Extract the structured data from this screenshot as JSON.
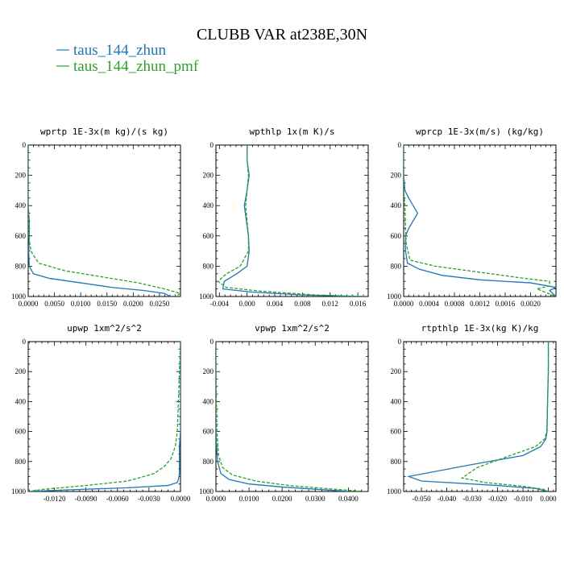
{
  "title": "CLUBB VAR at238E,30N",
  "colors": {
    "series1": "#1f77b4",
    "series2": "#2ca02c"
  },
  "legend": [
    {
      "name": "taus_144_zhun",
      "color": "#1f77b4",
      "style": "solid"
    },
    {
      "name": "taus_144_zhun_pmf",
      "color": "#2ca02c",
      "style": "dashed"
    }
  ],
  "chart_data": [
    {
      "type": "line",
      "title": "wprtp  1E-3x(m kg)/(s kg)",
      "xlim": [
        0,
        0.029
      ],
      "ylim": [
        1000,
        0
      ],
      "xticks": [
        0,
        0.005,
        0.01,
        0.015,
        0.02,
        0.025
      ],
      "xtick_labels": [
        "0.0000",
        "0.0050",
        "0.0100",
        "0.0150",
        "0.0200",
        "0.0250"
      ],
      "yticks": [
        0,
        200,
        400,
        600,
        800,
        1000
      ],
      "ytick_labels": [
        "0",
        "200",
        "400",
        "600",
        "800",
        "1000"
      ],
      "series": [
        {
          "name": "taus_144_zhun",
          "x": [
            0,
            0,
            0,
            0.0002,
            0.0002,
            0.0001,
            0.0002,
            0.001,
            0.004,
            0.01,
            0.016,
            0.022,
            0.026,
            0.027
          ],
          "y": [
            0,
            200,
            400,
            500,
            600,
            700,
            800,
            850,
            880,
            910,
            940,
            960,
            980,
            1000
          ]
        },
        {
          "name": "taus_144_zhun_pmf",
          "x": [
            0,
            0,
            0,
            0.0001,
            0.0001,
            0.0005,
            0.002,
            0.007,
            0.014,
            0.021,
            0.026,
            0.029,
            0.028
          ],
          "y": [
            0,
            200,
            400,
            500,
            600,
            700,
            780,
            830,
            870,
            910,
            950,
            980,
            1000
          ]
        }
      ]
    },
    {
      "type": "line",
      "title": "wpthlp  1x(m K)/s",
      "xlim": [
        -0.0045,
        0.0175
      ],
      "ylim": [
        1000,
        0
      ],
      "xticks": [
        -0.004,
        0,
        0.004,
        0.008,
        0.012,
        0.016
      ],
      "xtick_labels": [
        "-0.004",
        "0.000",
        "0.004",
        "0.008",
        "0.012",
        "0.016"
      ],
      "yticks": [
        0,
        200,
        400,
        600,
        800,
        1000
      ],
      "ytick_labels": [
        "0",
        "200",
        "400",
        "600",
        "800",
        "1000"
      ],
      "series": [
        {
          "name": "taus_144_zhun",
          "x": [
            0,
            0,
            0.0003,
            0,
            -0.0004,
            -0.0001,
            0.0002,
            0.0003,
            0,
            -0.0015,
            -0.0033,
            -0.0035,
            0.0005,
            0.008,
            0.017
          ],
          "y": [
            0,
            100,
            200,
            300,
            400,
            500,
            600,
            700,
            800,
            850,
            900,
            950,
            970,
            990,
            1000
          ]
        },
        {
          "name": "taus_144_zhun_pmf",
          "x": [
            0,
            0,
            0.0002,
            0,
            -0.0002,
            0,
            0.0002,
            0.0002,
            -0.001,
            -0.003,
            -0.0042,
            -0.003,
            0.002,
            0.01,
            0.017
          ],
          "y": [
            0,
            100,
            200,
            300,
            400,
            500,
            600,
            700,
            800,
            850,
            900,
            940,
            965,
            990,
            1000
          ]
        }
      ]
    },
    {
      "type": "line",
      "title": "wprcp  1E-3x(m/s) (kg/kg)",
      "xlim": [
        0,
        0.0024
      ],
      "ylim": [
        1000,
        0
      ],
      "xticks": [
        0,
        0.0004,
        0.0008,
        0.0012,
        0.0016,
        0.002
      ],
      "xtick_labels": [
        "0.0000",
        "0.0004",
        "0.0008",
        "0.0012",
        "0.0016",
        "0.0020"
      ],
      "yticks": [
        0,
        200,
        400,
        600,
        800,
        1000
      ],
      "ytick_labels": [
        "0",
        "200",
        "400",
        "600",
        "800",
        "1000"
      ],
      "series": [
        {
          "name": "taus_144_zhun",
          "x": [
            0,
            0,
            2e-05,
            8e-05,
            0.00022,
            8e-05,
            3e-05,
            3e-05,
            6e-05,
            0.00025,
            0.0006,
            0.0012,
            0.002,
            0.0024,
            0.0023,
            0.0024
          ],
          "y": [
            0,
            200,
            300,
            350,
            450,
            550,
            600,
            700,
            780,
            820,
            860,
            890,
            910,
            940,
            960,
            1000
          ]
        },
        {
          "name": "taus_144_zhun_pmf",
          "x": [
            0,
            0,
            0,
            2e-05,
            3e-05,
            4e-05,
            0.0001,
            0.0005,
            0.0012,
            0.0019,
            0.0023,
            0.0023,
            0.0021,
            0.0024
          ],
          "y": [
            0,
            200,
            300,
            400,
            550,
            650,
            760,
            800,
            840,
            880,
            900,
            930,
            950,
            1000
          ]
        }
      ]
    },
    {
      "type": "line",
      "title": "upwp  1xm^2/s^2",
      "xlim": [
        -0.0145,
        0
      ],
      "ylim": [
        1000,
        0
      ],
      "xticks": [
        -0.012,
        -0.009,
        -0.006,
        -0.003,
        0
      ],
      "xtick_labels": [
        "-0.0120",
        "-0.0090",
        "-0.0060",
        "-0.0030",
        "0.0000"
      ],
      "yticks": [
        0,
        200,
        400,
        600,
        800,
        1000
      ],
      "ytick_labels": [
        "0",
        "200",
        "400",
        "600",
        "800",
        "1000"
      ],
      "series": [
        {
          "name": "taus_144_zhun",
          "x": [
            0,
            0,
            0,
            0,
            -0.0001,
            -0.0001,
            -0.0001,
            -0.0002,
            -0.0003,
            -0.0012,
            -0.005,
            -0.011,
            -0.0145
          ],
          "y": [
            0,
            200,
            400,
            600,
            700,
            800,
            880,
            920,
            940,
            960,
            975,
            990,
            1000
          ]
        },
        {
          "name": "taus_144_zhun_pmf",
          "x": [
            0,
            -0.0001,
            -0.0002,
            -0.0003,
            -0.0005,
            -0.0009,
            -0.0015,
            -0.0025,
            -0.005,
            -0.009,
            -0.013,
            -0.0145
          ],
          "y": [
            0,
            200,
            400,
            600,
            700,
            780,
            830,
            880,
            930,
            960,
            985,
            1000
          ]
        }
      ]
    },
    {
      "type": "line",
      "title": "vpwp  1xm^2/s^2",
      "xlim": [
        0,
        0.046
      ],
      "ylim": [
        1000,
        0
      ],
      "xticks": [
        0,
        0.01,
        0.02,
        0.03,
        0.04
      ],
      "xtick_labels": [
        "0.0000",
        "0.0100",
        "0.0200",
        "0.0300",
        "0.0400"
      ],
      "yticks": [
        0,
        200,
        400,
        600,
        800,
        1000
      ],
      "ytick_labels": [
        "0",
        "200",
        "400",
        "600",
        "800",
        "1000"
      ],
      "series": [
        {
          "name": "taus_144_zhun",
          "x": [
            0,
            0,
            0,
            0.0002,
            0.0005,
            0.0015,
            0.004,
            0.01,
            0.02,
            0.03,
            0.037,
            0.04
          ],
          "y": [
            0,
            200,
            600,
            700,
            800,
            880,
            920,
            950,
            970,
            985,
            995,
            1000
          ]
        },
        {
          "name": "taus_144_zhun_pmf",
          "x": [
            0,
            0,
            0.0003,
            0.0008,
            0.002,
            0.005,
            0.012,
            0.022,
            0.033,
            0.042,
            0.045
          ],
          "y": [
            0,
            200,
            600,
            760,
            840,
            890,
            930,
            960,
            980,
            995,
            1000
          ]
        }
      ]
    },
    {
      "type": "line",
      "title": "rtpthlp  1E-3x(kg K)/kg",
      "xlim": [
        -0.057,
        0.003
      ],
      "ylim": [
        1000,
        0
      ],
      "xticks": [
        -0.05,
        -0.04,
        -0.03,
        -0.02,
        -0.01,
        0
      ],
      "xtick_labels": [
        "-0.050",
        "-0.040",
        "-0.030",
        "-0.020",
        "-0.010",
        "0.000"
      ],
      "yticks": [
        0,
        200,
        400,
        600,
        800,
        1000
      ],
      "ytick_labels": [
        "0",
        "200",
        "400",
        "600",
        "800",
        "1000"
      ],
      "series": [
        {
          "name": "taus_144_zhun",
          "x": [
            0,
            0,
            -0.0003,
            -0.0005,
            -0.001,
            -0.003,
            -0.01,
            -0.03,
            -0.055,
            -0.05,
            -0.02,
            -0.005,
            0
          ],
          "y": [
            0,
            200,
            400,
            600,
            650,
            700,
            760,
            820,
            900,
            930,
            960,
            980,
            1000
          ]
        },
        {
          "name": "taus_144_zhun_pmf",
          "x": [
            0,
            0,
            -0.0003,
            -0.0006,
            -0.0015,
            -0.005,
            -0.015,
            -0.028,
            -0.034,
            -0.025,
            -0.01,
            -0.002,
            0
          ],
          "y": [
            0,
            200,
            400,
            600,
            650,
            700,
            760,
            840,
            910,
            940,
            965,
            985,
            1000
          ]
        }
      ]
    }
  ]
}
